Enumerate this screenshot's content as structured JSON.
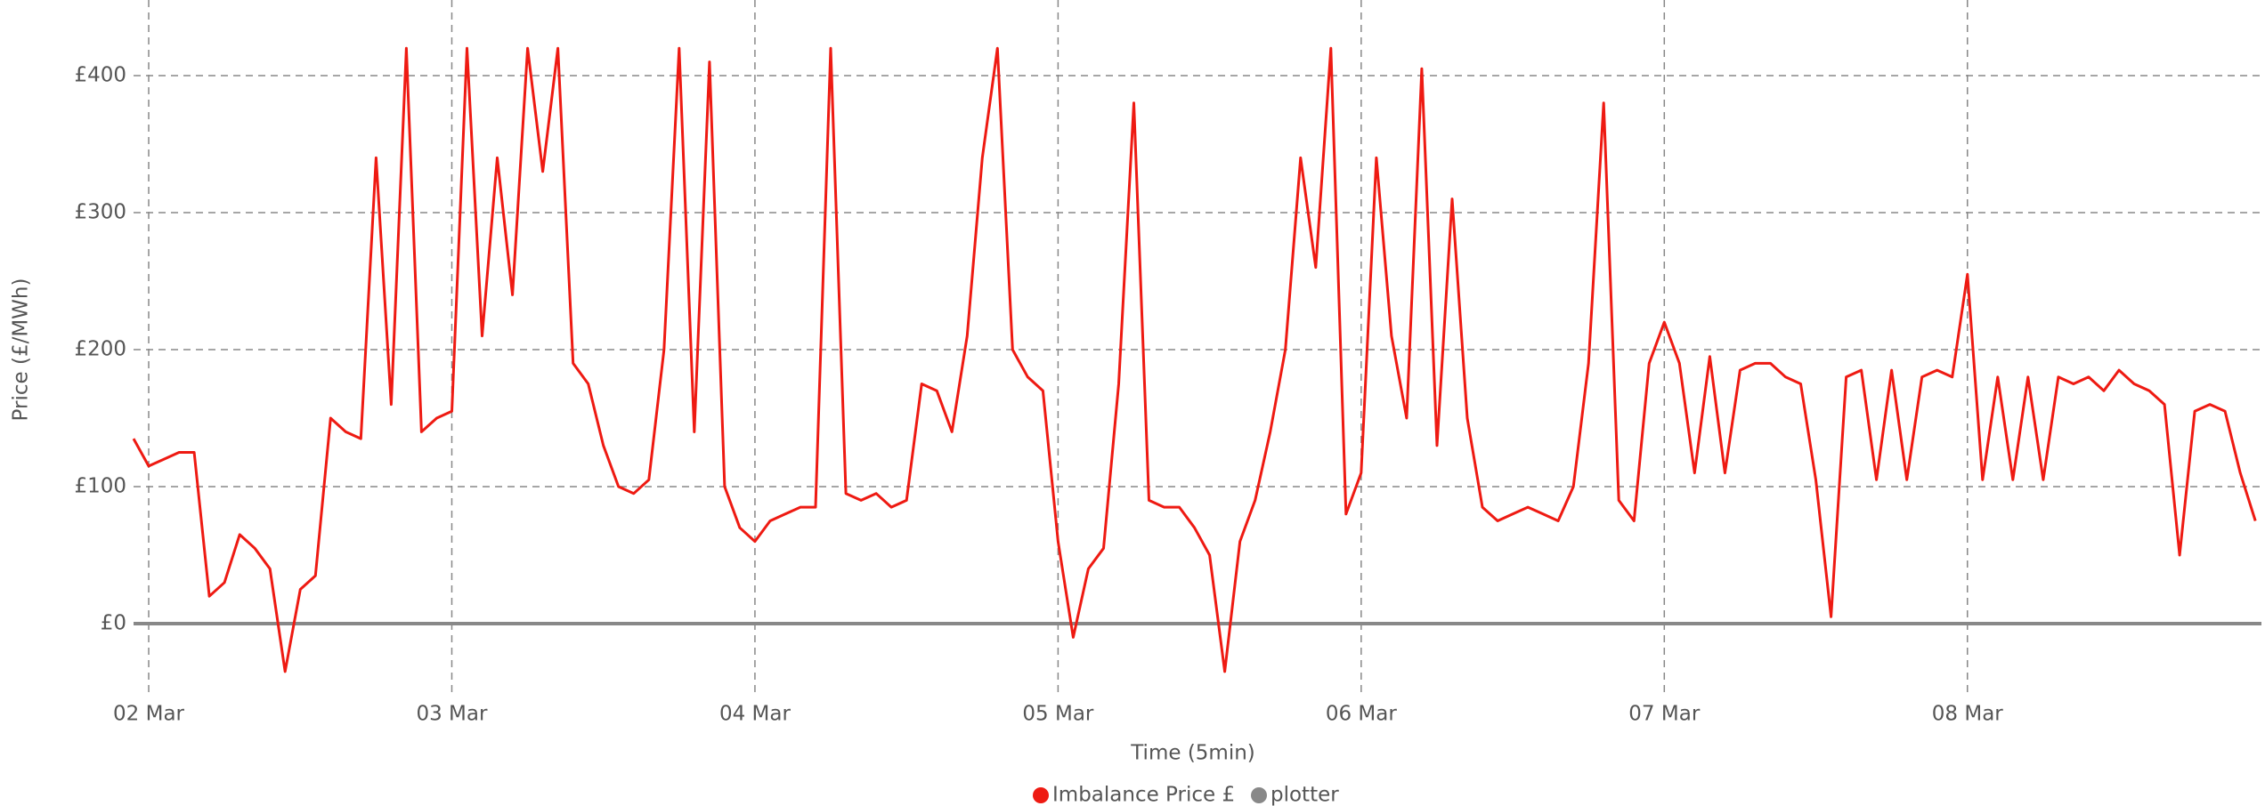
{
  "chart_data": {
    "type": "line",
    "x_label": "Time (5min)",
    "y_label": "Price (£/MWh)",
    "xlim": [
      1.95,
      8.97
    ],
    "ylim": [
      -50,
      450
    ],
    "xticks": [
      {
        "value": 2,
        "label": "02 Mar"
      },
      {
        "value": 3,
        "label": "03 Mar"
      },
      {
        "value": 4,
        "label": "04 Mar"
      },
      {
        "value": 5,
        "label": "05 Mar"
      },
      {
        "value": 6,
        "label": "06 Mar"
      },
      {
        "value": 7,
        "label": "07 Mar"
      },
      {
        "value": 8,
        "label": "08 Mar"
      }
    ],
    "yticks": [
      {
        "value": 0,
        "label": "£0"
      },
      {
        "value": 100,
        "label": "£100"
      },
      {
        "value": 200,
        "label": "£200"
      },
      {
        "value": 300,
        "label": "£300"
      },
      {
        "value": 400,
        "label": "£400"
      }
    ],
    "grid": true,
    "legend": "bottom",
    "series": [
      {
        "name": "Imbalance Price £",
        "color": "#ee1a12",
        "x": [
          1.95,
          2.0,
          2.05,
          2.1,
          2.15,
          2.2,
          2.25,
          2.3,
          2.35,
          2.4,
          2.45,
          2.5,
          2.55,
          2.6,
          2.65,
          2.7,
          2.75,
          2.8,
          2.85,
          2.9,
          2.95,
          3.0,
          3.05,
          3.1,
          3.15,
          3.2,
          3.25,
          3.3,
          3.35,
          3.4,
          3.45,
          3.5,
          3.55,
          3.6,
          3.65,
          3.7,
          3.75,
          3.8,
          3.85,
          3.9,
          3.95,
          4.0,
          4.05,
          4.1,
          4.15,
          4.2,
          4.25,
          4.3,
          4.35,
          4.4,
          4.45,
          4.5,
          4.55,
          4.6,
          4.65,
          4.7,
          4.75,
          4.8,
          4.85,
          4.9,
          4.95,
          5.0,
          5.05,
          5.1,
          5.15,
          5.2,
          5.25,
          5.3,
          5.35,
          5.4,
          5.45,
          5.5,
          5.55,
          5.6,
          5.65,
          5.7,
          5.75,
          5.8,
          5.85,
          5.9,
          5.95,
          6.0,
          6.05,
          6.1,
          6.15,
          6.2,
          6.25,
          6.3,
          6.35,
          6.4,
          6.45,
          6.5,
          6.55,
          6.6,
          6.65,
          6.7,
          6.75,
          6.8,
          6.85,
          6.9,
          6.95,
          7.0,
          7.05,
          7.1,
          7.15,
          7.2,
          7.25,
          7.3,
          7.35,
          7.4,
          7.45,
          7.5,
          7.55,
          7.6,
          7.65,
          7.7,
          7.75,
          7.8,
          7.85,
          7.9,
          7.95,
          8.0,
          8.05,
          8.1,
          8.15,
          8.2,
          8.25,
          8.3,
          8.35,
          8.4,
          8.45,
          8.5,
          8.55,
          8.6,
          8.65,
          8.7,
          8.75,
          8.8,
          8.85,
          8.9,
          8.95
        ],
        "values": [
          135,
          115,
          120,
          125,
          125,
          20,
          30,
          65,
          55,
          40,
          -35,
          25,
          35,
          150,
          140,
          135,
          340,
          160,
          420,
          140,
          150,
          155,
          420,
          210,
          340,
          240,
          420,
          330,
          420,
          190,
          175,
          130,
          100,
          95,
          105,
          200,
          420,
          140,
          410,
          100,
          70,
          60,
          75,
          80,
          85,
          85,
          420,
          95,
          90,
          95,
          85,
          90,
          175,
          170,
          140,
          210,
          340,
          420,
          200,
          180,
          170,
          60,
          -10,
          40,
          55,
          175,
          380,
          90,
          85,
          85,
          70,
          50,
          -35,
          60,
          90,
          140,
          200,
          340,
          260,
          420,
          80,
          110,
          340,
          210,
          150,
          405,
          130,
          310,
          150,
          85,
          75,
          80,
          85,
          80,
          75,
          100,
          190,
          380,
          90,
          75,
          190,
          220,
          190,
          110,
          195,
          110,
          185,
          190,
          190,
          180,
          175,
          105,
          5,
          180,
          185,
          105,
          185,
          105,
          180,
          185,
          180,
          255,
          105,
          180,
          105,
          180,
          105,
          180,
          175,
          180,
          170,
          185,
          175,
          170,
          160,
          50,
          155,
          160,
          155,
          110,
          75
        ]
      },
      {
        "name": "plotter",
        "color": "#888888",
        "x": [
          1.95,
          8.97
        ],
        "values": [
          0,
          0
        ]
      }
    ]
  }
}
